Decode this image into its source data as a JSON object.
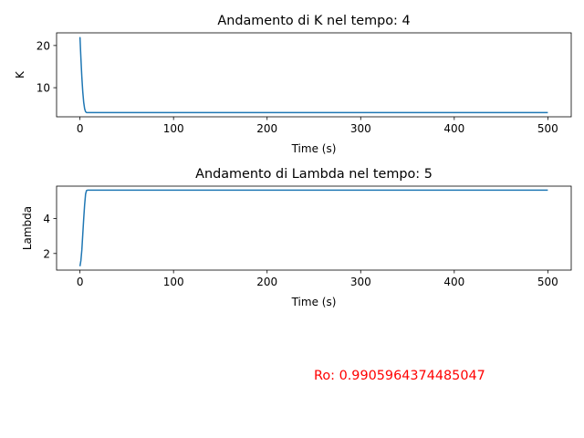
{
  "chart_data": [
    {
      "type": "line",
      "title": "Andamento di K nel tempo: 4",
      "xlabel": "Time (s)",
      "ylabel": "K",
      "xlim": [
        -25,
        525
      ],
      "ylim": [
        3.1,
        23.0
      ],
      "xticks": [
        0,
        100,
        200,
        300,
        400,
        500
      ],
      "yticks": [
        10,
        20
      ],
      "grid": false,
      "color": "#1f77b4",
      "x": [
        0,
        1,
        2,
        3,
        4,
        5,
        6,
        7,
        8,
        10,
        20,
        50,
        100,
        200,
        300,
        400,
        500
      ],
      "y": [
        22,
        17,
        12.5,
        9,
        6.5,
        5,
        4.3,
        4.1,
        4.1,
        4.1,
        4.1,
        4.1,
        4.1,
        4.1,
        4.1,
        4.1,
        4.1
      ]
    },
    {
      "type": "line",
      "title": "Andamento di Lambda nel tempo: 5",
      "xlabel": "Time (s)",
      "ylabel": "Lambda",
      "xlim": [
        -25,
        525
      ],
      "ylim": [
        1.05,
        5.85
      ],
      "xticks": [
        0,
        100,
        200,
        300,
        400,
        500
      ],
      "yticks": [
        2,
        4
      ],
      "grid": false,
      "color": "#1f77b4",
      "x": [
        0,
        1,
        2,
        3,
        4,
        5,
        6,
        7,
        8,
        10,
        20,
        50,
        100,
        200,
        300,
        400,
        500
      ],
      "y": [
        1.27,
        1.6,
        2.2,
        3.1,
        4.0,
        4.8,
        5.4,
        5.6,
        5.62,
        5.62,
        5.62,
        5.62,
        5.62,
        5.62,
        5.62,
        5.62,
        5.62
      ]
    }
  ],
  "annotation": {
    "text": "Ro: 0.9905964374485047",
    "color": "#ff0000"
  }
}
